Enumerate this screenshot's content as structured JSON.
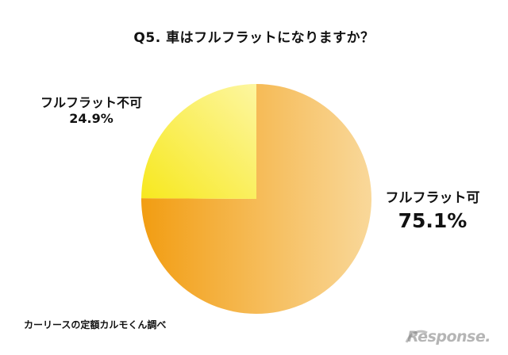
{
  "chart_data": {
    "type": "pie",
    "title": "Q5. 車はフルフラットになりますか？",
    "slices": [
      {
        "label": "フルフラット可",
        "value": 75.1,
        "value_label": "75.1%"
      },
      {
        "label": "フルフラット不可",
        "value": 24.9,
        "value_label": "24.9%"
      }
    ],
    "colors": {
      "large_from": "#F29D12",
      "large_to": "#F9D89A",
      "small_from": "#F7E81E",
      "small_to": "#FDF6A0"
    }
  },
  "source": "カーリースの定額カルモくん調べ",
  "watermark": "Response."
}
